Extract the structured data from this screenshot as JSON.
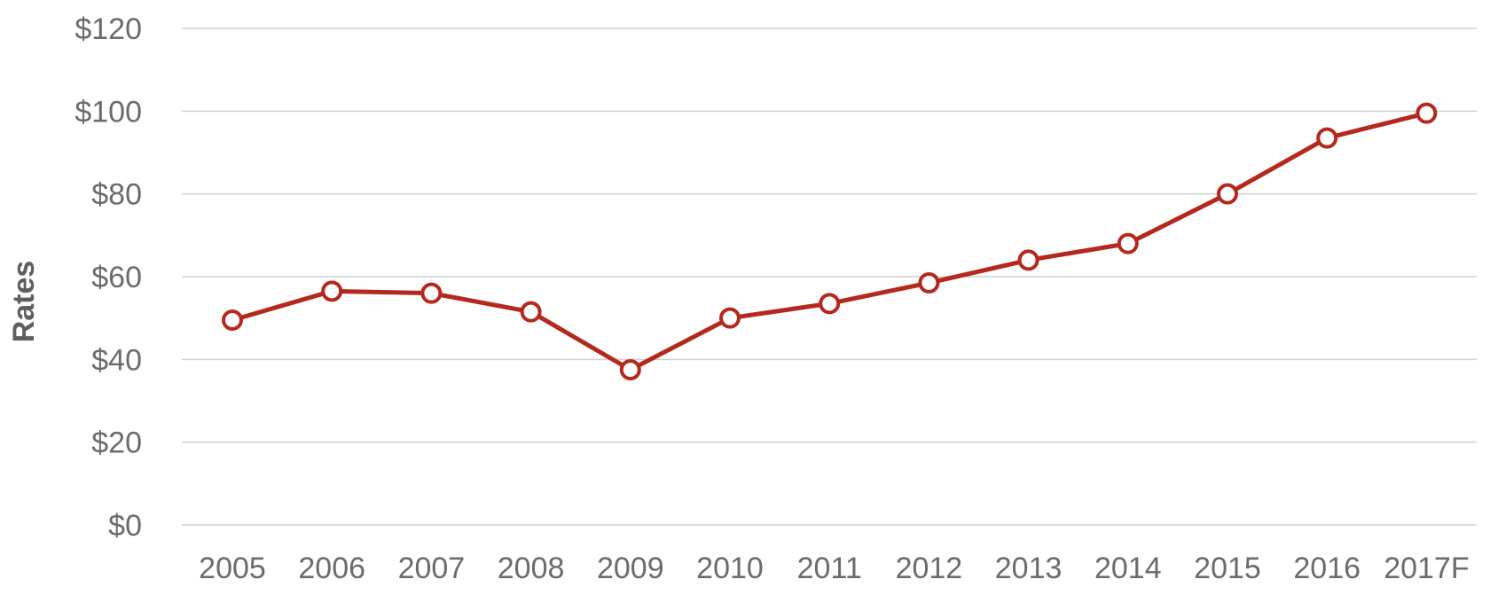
{
  "chart_data": {
    "type": "line",
    "ylabel": "Rates",
    "xlabel": "",
    "ylim": [
      0,
      120
    ],
    "y_ticks": [
      0,
      20,
      40,
      60,
      80,
      100,
      120
    ],
    "y_tick_labels": [
      "$0",
      "$20",
      "$40",
      "$60",
      "$80",
      "$100",
      "$120"
    ],
    "grid": true,
    "legend": "none",
    "categories": [
      "2005",
      "2006",
      "2007",
      "2008",
      "2009",
      "2010",
      "2011",
      "2012",
      "2013",
      "2014",
      "2015",
      "2016",
      "2017F"
    ],
    "series": [
      {
        "values": [
          49.5,
          56.5,
          56,
          51.5,
          37.5,
          50,
          53.5,
          58.5,
          64,
          68,
          80,
          93.5,
          99.5
        ],
        "color": "#b5281e"
      }
    ]
  }
}
